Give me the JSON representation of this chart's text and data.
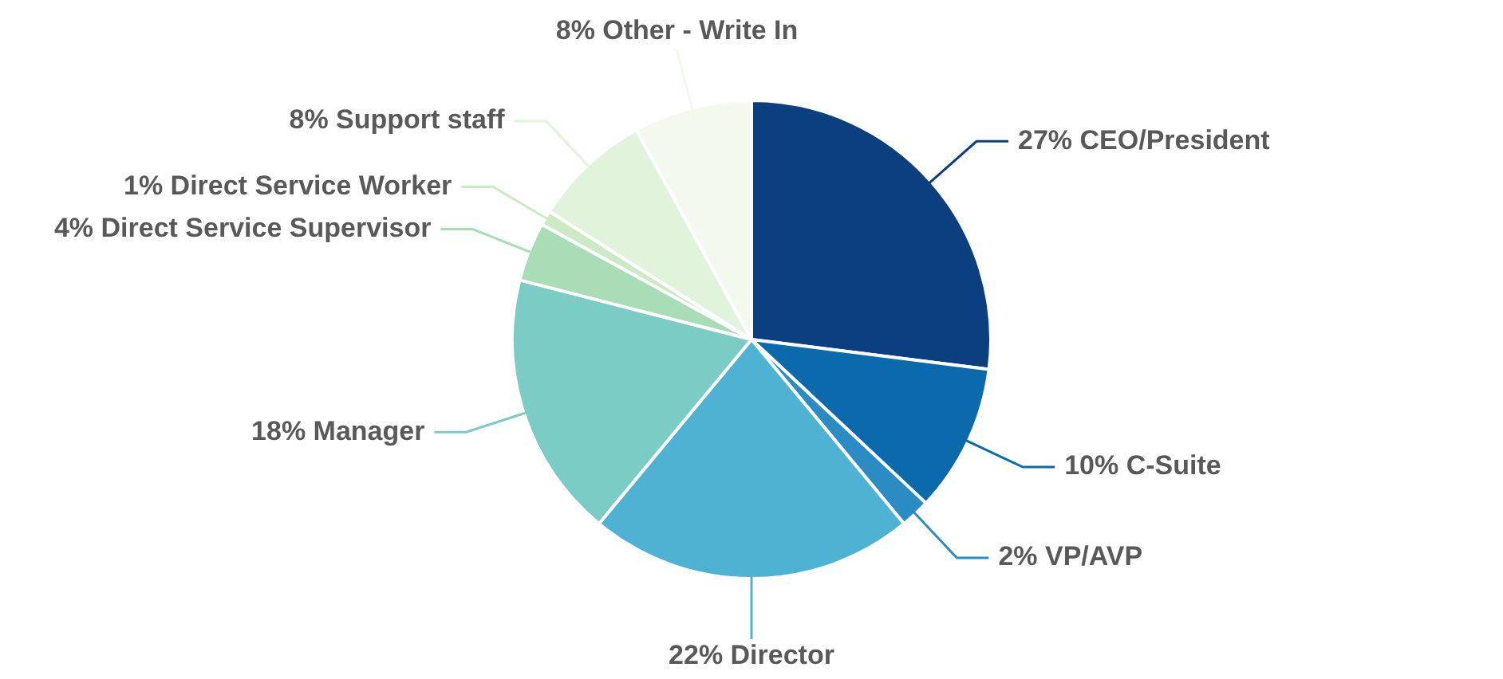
{
  "chart_data": {
    "type": "pie",
    "categories": [
      "CEO/President",
      "C-Suite",
      "VP/AVP",
      "Director",
      "Manager",
      "Direct Service Supervisor",
      "Direct Service Worker",
      "Support staff",
      "Other - Write In"
    ],
    "values": [
      27,
      10,
      2,
      22,
      18,
      4,
      1,
      8,
      8
    ],
    "value_labels": [
      "27%",
      "10%",
      "2%",
      "22%",
      "18%",
      "4%",
      "1%",
      "8%",
      "8%"
    ],
    "colors": [
      "#0b3f80",
      "#0a6aab",
      "#2b8cc4",
      "#4eb3d3",
      "#7bccc4",
      "#a8ddb5",
      "#ccebc5",
      "#e0f3db",
      "#f3f9ed"
    ],
    "legend": false
  }
}
